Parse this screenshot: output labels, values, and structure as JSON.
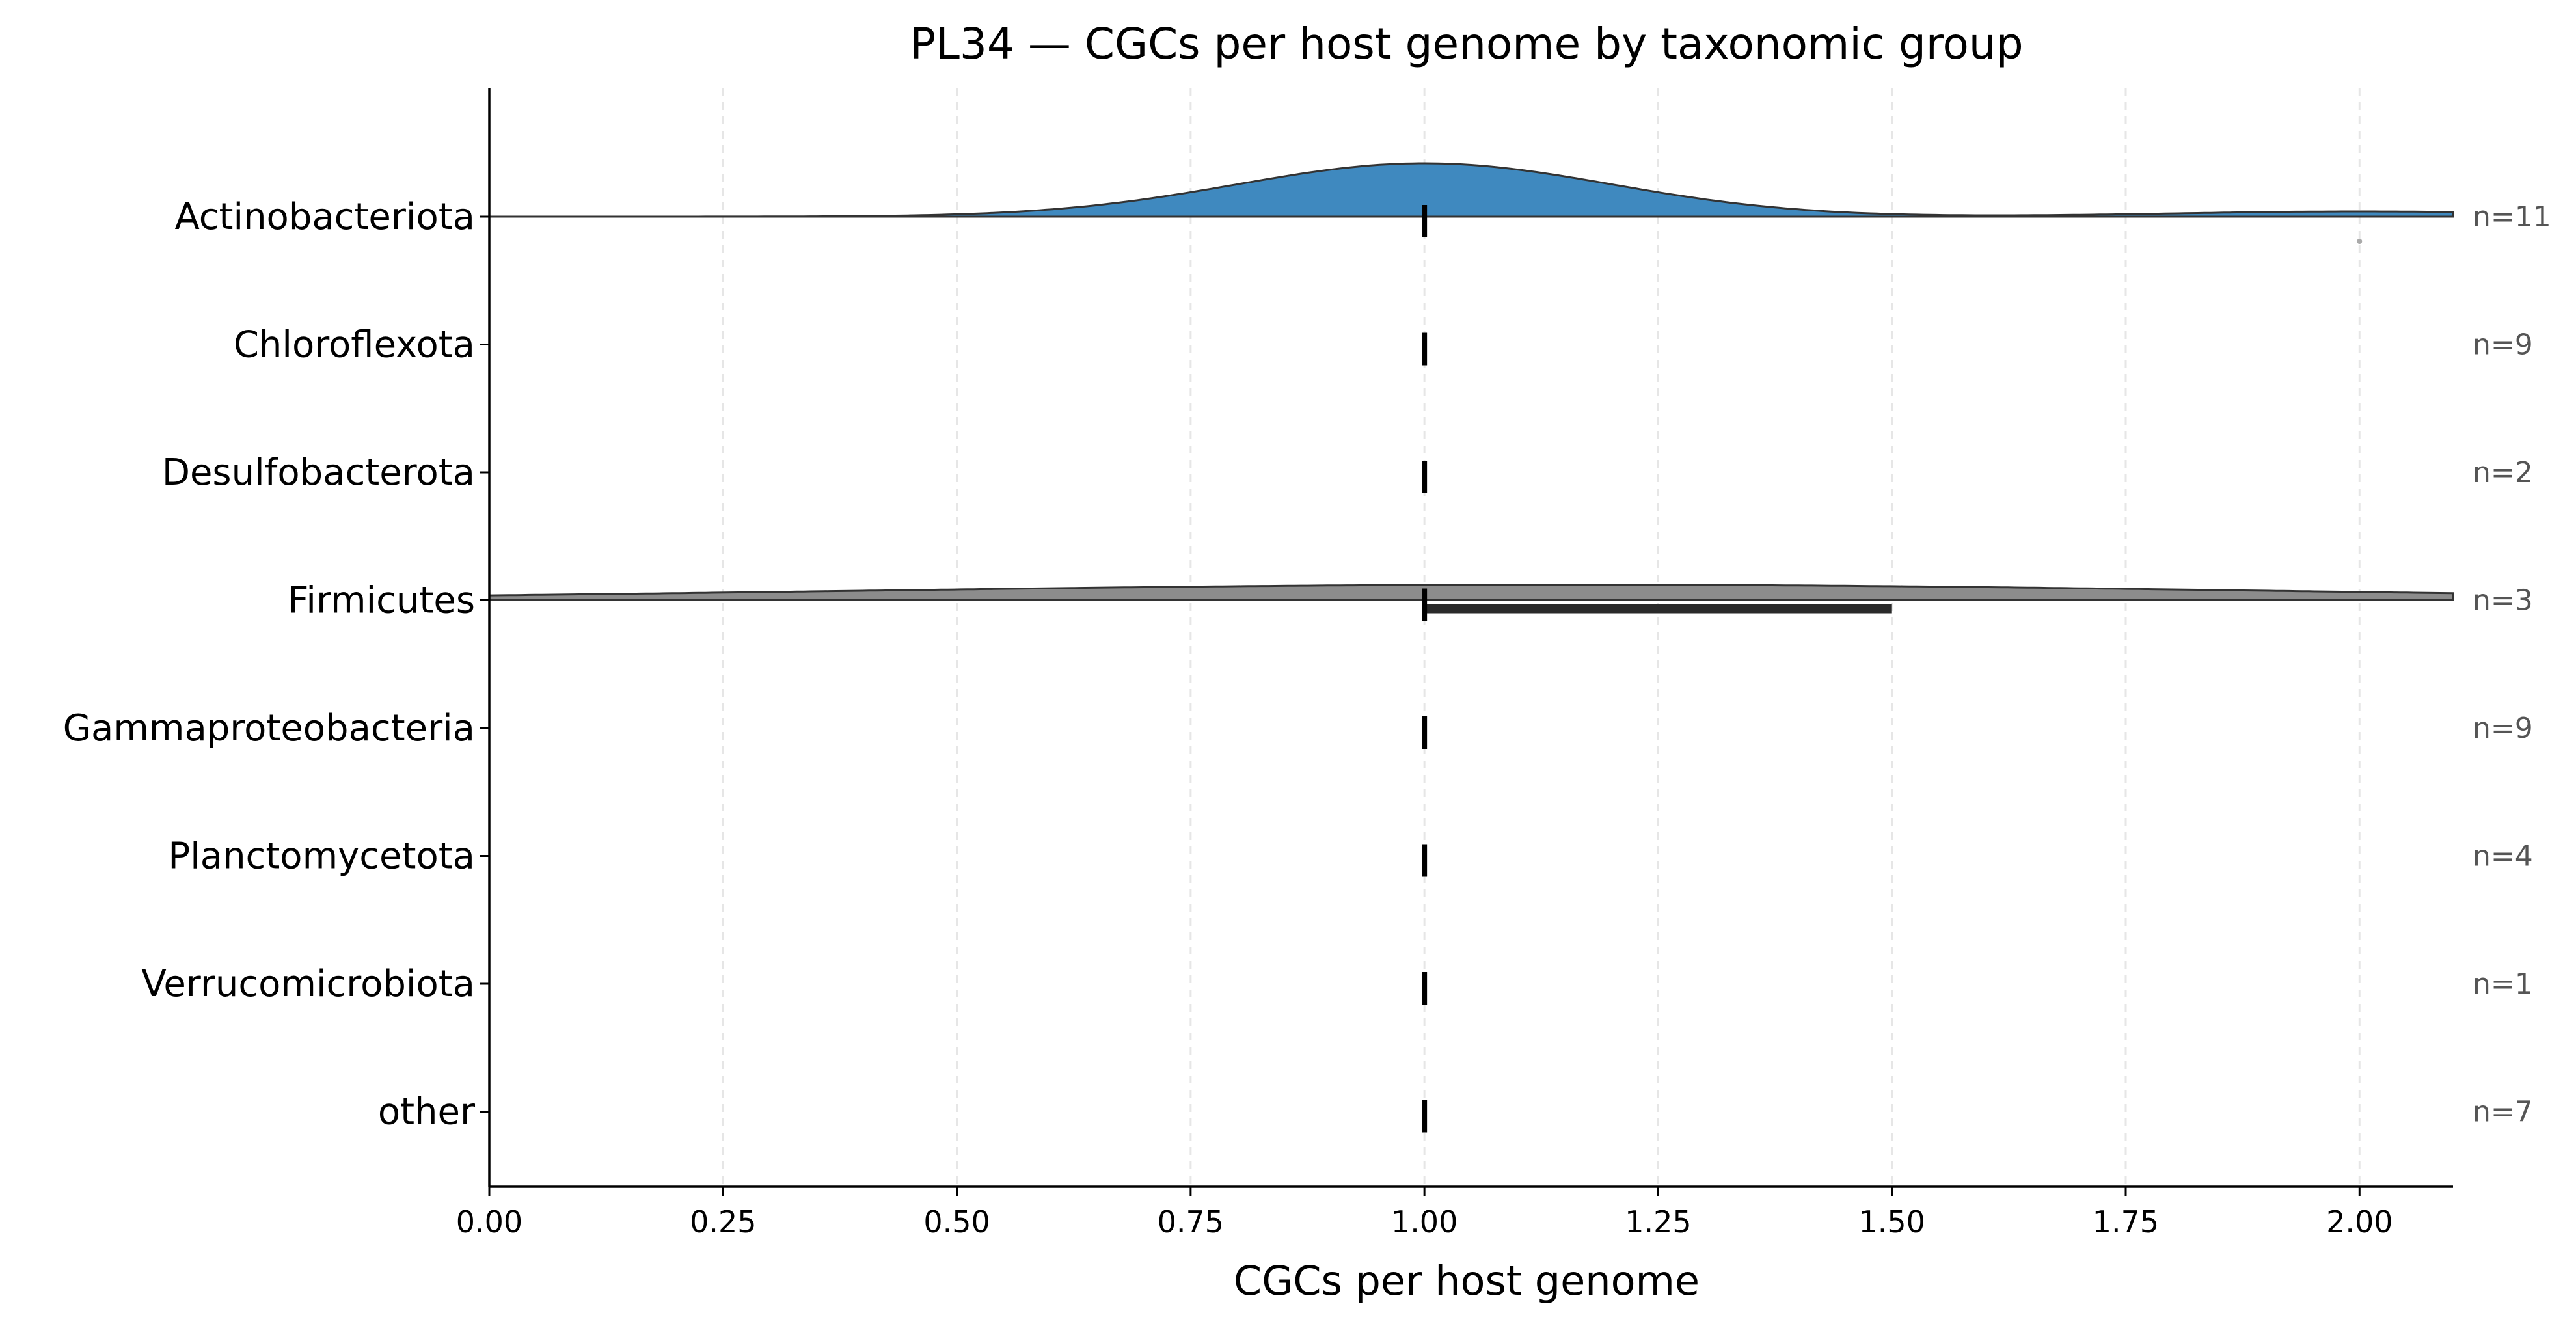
{
  "chart_data": {
    "type": "violin",
    "title": "PL34 — CGCs per host genome by taxonomic group",
    "xlabel": "CGCs per host genome",
    "xlim": [
      0,
      2.1
    ],
    "xticks": [
      0.0,
      0.25,
      0.5,
      0.75,
      1.0,
      1.25,
      1.5,
      1.75,
      2.0
    ],
    "xtick_labels": [
      "0.00",
      "0.25",
      "0.50",
      "0.75",
      "1.00",
      "1.25",
      "1.50",
      "1.75",
      "2.00"
    ],
    "grid": "vertical dashed",
    "categories": [
      "Actinobacteriota",
      "Chloroflexota",
      "Desulfobacterota",
      "Firmicutes",
      "Gammaproteobacteria",
      "Planctomycetota",
      "Verrucomicrobiota",
      "other"
    ],
    "groups": [
      {
        "name": "Actinobacteriota",
        "n_label": "n=11",
        "median": 1.0,
        "q1": 1.0,
        "q3": 1.0,
        "outliers": [
          2.0
        ],
        "violin": "blue"
      },
      {
        "name": "Chloroflexota",
        "n_label": "n=9",
        "median": 1.0,
        "q1": 1.0,
        "q3": 1.0,
        "outliers": [],
        "violin": "none"
      },
      {
        "name": "Desulfobacterota",
        "n_label": "n=2",
        "median": 1.0,
        "q1": 1.0,
        "q3": 1.0,
        "outliers": [],
        "violin": "none"
      },
      {
        "name": "Firmicutes",
        "n_label": "n=3",
        "median": 1.0,
        "q1": 1.0,
        "q3": 1.5,
        "outliers": [],
        "violin": "grey"
      },
      {
        "name": "Gammaproteobacteria",
        "n_label": "n=9",
        "median": 1.0,
        "q1": 1.0,
        "q3": 1.0,
        "outliers": [],
        "violin": "none"
      },
      {
        "name": "Planctomycetota",
        "n_label": "n=4",
        "median": 1.0,
        "q1": 1.0,
        "q3": 1.0,
        "outliers": [],
        "violin": "none"
      },
      {
        "name": "Verrucomicrobiota",
        "n_label": "n=1",
        "median": 1.0,
        "q1": 1.0,
        "q3": 1.0,
        "outliers": [],
        "violin": "none"
      },
      {
        "name": "other",
        "n_label": "n=7",
        "median": 1.0,
        "q1": 1.0,
        "q3": 1.0,
        "outliers": [],
        "violin": "none"
      }
    ],
    "colors": {
      "blue": "#3f89bf",
      "grey": "#8c8c8c",
      "outline": "#333333",
      "median": "#000000",
      "iqr": "#2a2a2a",
      "grid": "#e6e6e6",
      "outlier": "#aaaaaa"
    }
  }
}
